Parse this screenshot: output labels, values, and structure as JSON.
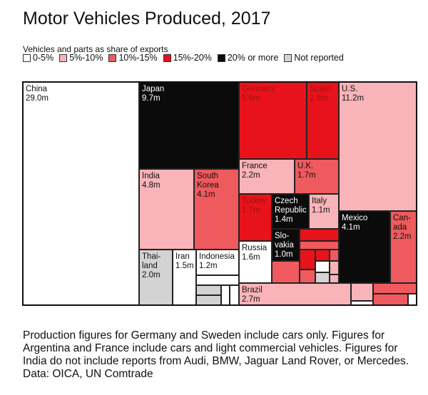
{
  "chart_data": {
    "type": "treemap",
    "title": "Motor Vehicles Produced, 2017",
    "subtitle": "Vehicles and parts as share of exports",
    "legend": [
      {
        "label": "0-5%",
        "color": "#ffffff"
      },
      {
        "label": "5%-10%",
        "color": "#f8b4b9"
      },
      {
        "label": "10%-15%",
        "color": "#ef5a5e"
      },
      {
        "label": "15%-20%",
        "color": "#e8131a"
      },
      {
        "label": "20% or more",
        "color": "#0b0b0b"
      },
      {
        "label": "Not reported",
        "color": "#d3d3d3"
      }
    ],
    "items": [
      {
        "name": "China",
        "value": "29.0m",
        "cat": 0
      },
      {
        "name": "Japan",
        "value": "9.7m",
        "cat": 4
      },
      {
        "name": "India",
        "value": "4.8m",
        "cat": 1
      },
      {
        "name": "South Korea",
        "value": "4.1m",
        "cat": 2
      },
      {
        "name": "Thai-land",
        "value": "2.0m",
        "cat": 5
      },
      {
        "name": "Iran",
        "value": "1.5m",
        "cat": 0
      },
      {
        "name": "Indonesia",
        "value": "1.2m",
        "cat": 0
      },
      {
        "name": "Germany",
        "value": "5.6m",
        "cat": 3
      },
      {
        "name": "Spain",
        "value": "2.8m",
        "cat": 3
      },
      {
        "name": "France",
        "value": "2.2m",
        "cat": 1
      },
      {
        "name": "U.K.",
        "value": "1.7m",
        "cat": 2
      },
      {
        "name": "Turkey",
        "value": "1.7m",
        "cat": 3
      },
      {
        "name": "Czech Republic",
        "value": "1.4m",
        "cat": 4
      },
      {
        "name": "Italy",
        "value": "1.1m",
        "cat": 1
      },
      {
        "name": "Russia",
        "value": "1.6m",
        "cat": 0
      },
      {
        "name": "Slo-vakia",
        "value": "1.0m",
        "cat": 4
      },
      {
        "name": "Brazil",
        "value": "2.7m",
        "cat": 1
      },
      {
        "name": "U.S.",
        "value": "11.2m",
        "cat": 1
      },
      {
        "name": "Mexico",
        "value": "4.1m",
        "cat": 4
      },
      {
        "name": "Can-ada",
        "value": "2.2m",
        "cat": 2
      }
    ]
  },
  "note": "Production figures for Germany and Sweden include cars only. Figures for Argentina and France include cars and light commercial vehicles. Figures for India do not include reports from Audi, BMW, Jaguar Land Rover, or Mercedes. Data: OICA, UN Comtrade"
}
